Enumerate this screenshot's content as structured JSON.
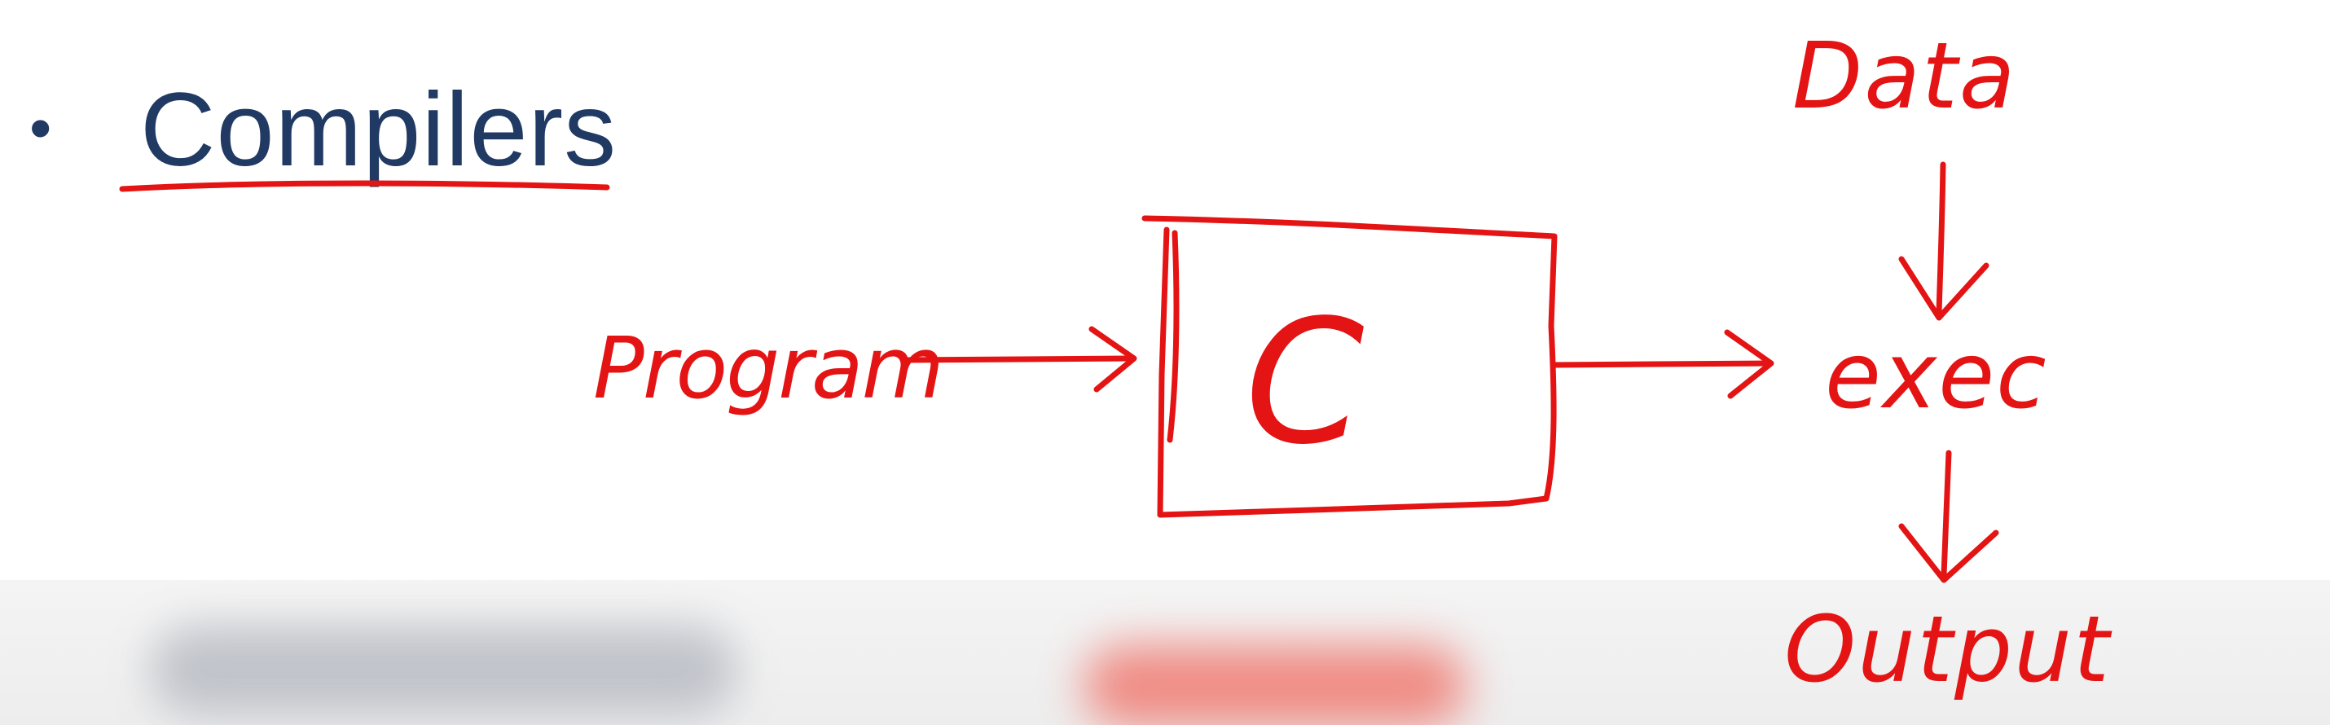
{
  "slide": {
    "bullet": "•",
    "heading": "Compilers"
  },
  "diagram": {
    "box_label": "C",
    "input_label": "Program",
    "data_label": "Data",
    "exec_label": "exec",
    "output_label": "Output"
  },
  "colors": {
    "ink": "#e41414",
    "heading_text": "#213a63"
  }
}
